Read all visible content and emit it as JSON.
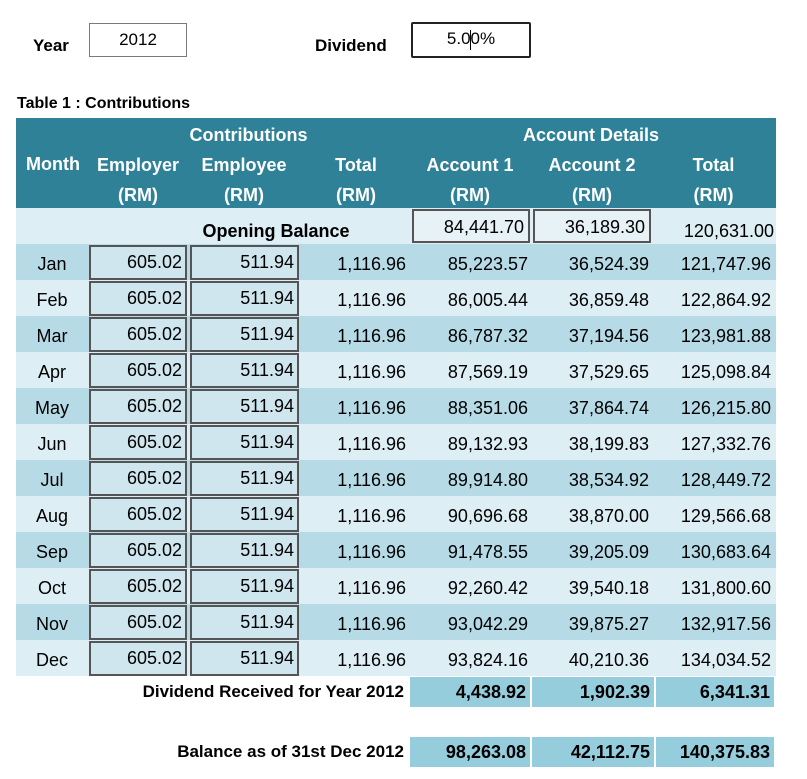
{
  "top": {
    "year_label": "Year",
    "year_value": "2012",
    "dividend_label": "Dividend",
    "dividend_value": "5.00%"
  },
  "table_title": "Table 1 : Contributions",
  "header": {
    "month": "Month",
    "contributions": "Contributions",
    "account_details": "Account Details",
    "employer": "Employer",
    "employee": "Employee",
    "total": "Total",
    "account1": "Account 1",
    "account2": "Account 2",
    "total2": "Total",
    "unit": "(RM)"
  },
  "opening": {
    "label": "Opening Balance",
    "account1": "84,441.70",
    "account2": "36,189.30",
    "total": "120,631.00"
  },
  "rows": [
    {
      "month": "Jan",
      "employer": "605.02",
      "employee": "511.94",
      "total": "1,116.96",
      "account1": "85,223.57",
      "account2": "36,524.39",
      "balance": "121,747.96"
    },
    {
      "month": "Feb",
      "employer": "605.02",
      "employee": "511.94",
      "total": "1,116.96",
      "account1": "86,005.44",
      "account2": "36,859.48",
      "balance": "122,864.92"
    },
    {
      "month": "Mar",
      "employer": "605.02",
      "employee": "511.94",
      "total": "1,116.96",
      "account1": "86,787.32",
      "account2": "37,194.56",
      "balance": "123,981.88"
    },
    {
      "month": "Apr",
      "employer": "605.02",
      "employee": "511.94",
      "total": "1,116.96",
      "account1": "87,569.19",
      "account2": "37,529.65",
      "balance": "125,098.84"
    },
    {
      "month": "May",
      "employer": "605.02",
      "employee": "511.94",
      "total": "1,116.96",
      "account1": "88,351.06",
      "account2": "37,864.74",
      "balance": "126,215.80"
    },
    {
      "month": "Jun",
      "employer": "605.02",
      "employee": "511.94",
      "total": "1,116.96",
      "account1": "89,132.93",
      "account2": "38,199.83",
      "balance": "127,332.76"
    },
    {
      "month": "Jul",
      "employer": "605.02",
      "employee": "511.94",
      "total": "1,116.96",
      "account1": "89,914.80",
      "account2": "38,534.92",
      "balance": "128,449.72"
    },
    {
      "month": "Aug",
      "employer": "605.02",
      "employee": "511.94",
      "total": "1,116.96",
      "account1": "90,696.68",
      "account2": "38,870.00",
      "balance": "129,566.68"
    },
    {
      "month": "Sep",
      "employer": "605.02",
      "employee": "511.94",
      "total": "1,116.96",
      "account1": "91,478.55",
      "account2": "39,205.09",
      "balance": "130,683.64"
    },
    {
      "month": "Oct",
      "employer": "605.02",
      "employee": "511.94",
      "total": "1,116.96",
      "account1": "92,260.42",
      "account2": "39,540.18",
      "balance": "131,800.60"
    },
    {
      "month": "Nov",
      "employer": "605.02",
      "employee": "511.94",
      "total": "1,116.96",
      "account1": "93,042.29",
      "account2": "39,875.27",
      "balance": "132,917.56"
    },
    {
      "month": "Dec",
      "employer": "605.02",
      "employee": "511.94",
      "total": "1,116.96",
      "account1": "93,824.16",
      "account2": "40,210.36",
      "balance": "134,034.52"
    }
  ],
  "dividend_received": {
    "label": "Dividend Received for Year 2012",
    "account1": "4,438.92",
    "account2": "1,902.39",
    "total": "6,341.31"
  },
  "balance": {
    "label": "Balance as of 31st Dec 2012",
    "account1": "98,263.08",
    "account2": "42,112.75",
    "total": "140,375.83"
  },
  "colors": {
    "header_bg": "#2e8197",
    "row_light": "#ddeef5",
    "row_dark": "#b6dbe7",
    "summary_bg": "#95cddd"
  }
}
